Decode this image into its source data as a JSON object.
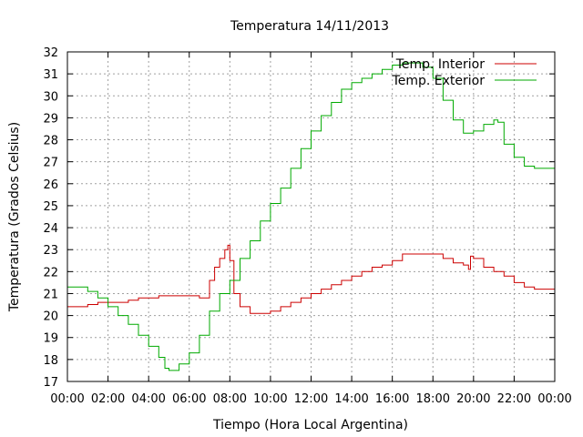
{
  "chart_data": {
    "type": "line",
    "title": "Temperatura 14/11/2013",
    "xlabel": "Tiempo (Hora Local Argentina)",
    "ylabel": "Temperatura (Grados Celsius)",
    "xlim": [
      0,
      24
    ],
    "ylim": [
      17,
      32
    ],
    "x_ticks": [
      "00:00",
      "02:00",
      "04:00",
      "06:00",
      "08:00",
      "10:00",
      "12:00",
      "14:00",
      "16:00",
      "18:00",
      "20:00",
      "22:00",
      "00:00"
    ],
    "y_ticks": [
      17,
      18,
      19,
      20,
      21,
      22,
      23,
      24,
      25,
      26,
      27,
      28,
      29,
      30,
      31,
      32
    ],
    "grid": true,
    "legend_position": "top-right",
    "x_unit": "hours",
    "series": [
      {
        "name": "Temp. Interior",
        "color": "#cc0000",
        "x": [
          0,
          0.5,
          1,
          1.5,
          2,
          2.5,
          3,
          3.5,
          4,
          4.5,
          5,
          5.5,
          6,
          6.5,
          6.75,
          7,
          7.25,
          7.5,
          7.75,
          7.9,
          8,
          8.2,
          8.5,
          9,
          9.5,
          10,
          10.5,
          11,
          11.5,
          12,
          12.5,
          13,
          13.5,
          14,
          14.5,
          15,
          15.5,
          16,
          16.5,
          17,
          17.5,
          18,
          18.5,
          19,
          19.5,
          19.75,
          19.85,
          20,
          20.5,
          21,
          21.5,
          22,
          22.5,
          23,
          23.5,
          24
        ],
        "y": [
          20.4,
          20.4,
          20.5,
          20.6,
          20.6,
          20.6,
          20.7,
          20.8,
          20.8,
          20.9,
          20.9,
          20.9,
          20.9,
          20.8,
          20.8,
          21.6,
          22.2,
          22.6,
          23.0,
          23.2,
          22.5,
          21.0,
          20.4,
          20.1,
          20.1,
          20.2,
          20.4,
          20.6,
          20.8,
          21.0,
          21.2,
          21.4,
          21.6,
          21.8,
          22.0,
          22.2,
          22.3,
          22.5,
          22.8,
          22.8,
          22.8,
          22.8,
          22.6,
          22.4,
          22.3,
          22.1,
          22.7,
          22.6,
          22.2,
          22.0,
          21.8,
          21.5,
          21.3,
          21.2,
          21.2,
          21.0
        ]
      },
      {
        "name": "Temp. Exterior",
        "color": "#00aa00",
        "x": [
          0,
          0.5,
          1,
          1.5,
          2,
          2.5,
          3,
          3.5,
          4,
          4.5,
          4.8,
          5,
          5.5,
          6,
          6.5,
          7,
          7.5,
          8,
          8.5,
          9,
          9.5,
          10,
          10.5,
          11,
          11.5,
          12,
          12.5,
          13,
          13.5,
          14,
          14.5,
          15,
          15.5,
          16,
          16.5,
          17,
          17.5,
          18,
          18.5,
          19,
          19.5,
          20,
          20.5,
          21,
          21.2,
          21.5,
          22,
          22.5,
          23,
          23.5,
          24
        ],
        "y": [
          21.3,
          21.3,
          21.1,
          20.8,
          20.4,
          20.0,
          19.6,
          19.1,
          18.6,
          18.1,
          17.6,
          17.5,
          17.8,
          18.3,
          19.1,
          20.2,
          21.0,
          21.6,
          22.6,
          23.4,
          24.3,
          25.1,
          25.8,
          26.7,
          27.6,
          28.4,
          29.1,
          29.7,
          30.3,
          30.6,
          30.8,
          31.0,
          31.2,
          31.4,
          31.5,
          31.5,
          31.3,
          30.8,
          29.8,
          28.9,
          28.3,
          28.4,
          28.7,
          28.9,
          28.8,
          27.8,
          27.2,
          26.8,
          26.7,
          26.7,
          26.6
        ]
      }
    ]
  }
}
